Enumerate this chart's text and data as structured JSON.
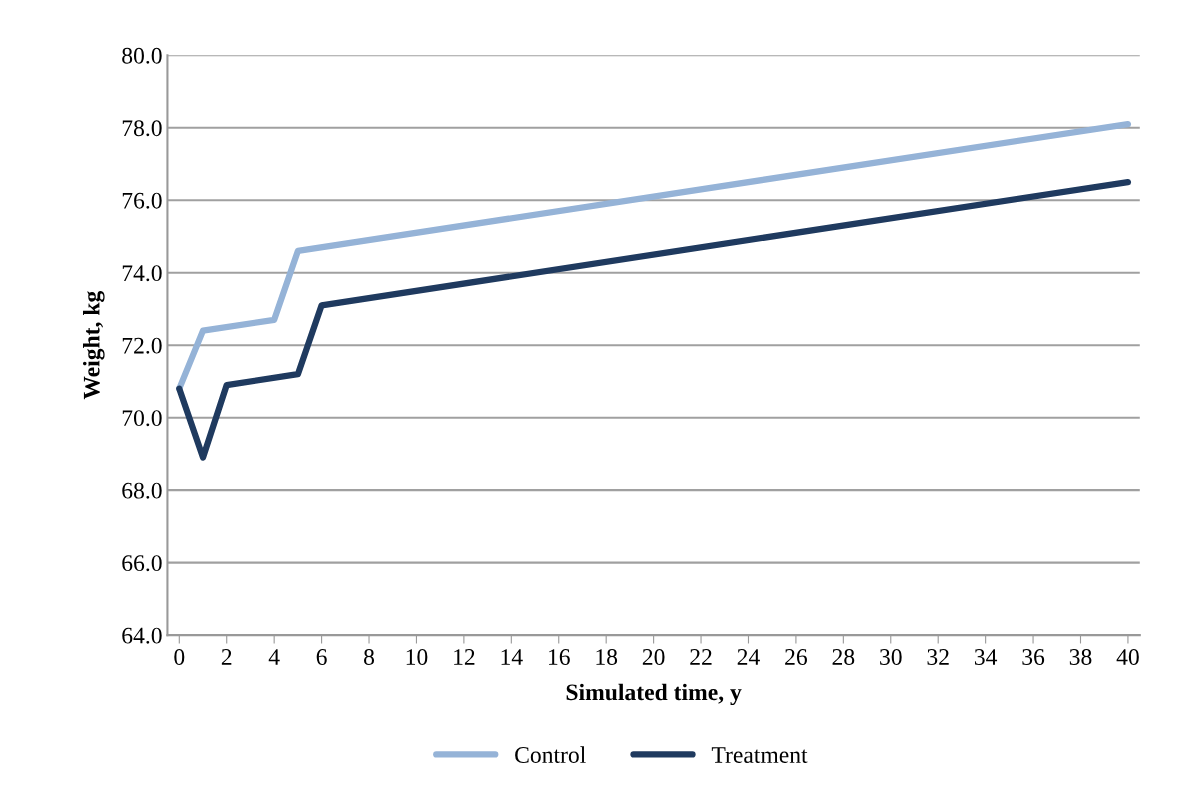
{
  "chart_data": {
    "type": "line",
    "xlabel": "Simulated time, y",
    "ylabel": "Weight, kg",
    "xlim": [
      -0.5,
      40.5
    ],
    "xticks": [
      0,
      2,
      4,
      6,
      8,
      10,
      12,
      14,
      16,
      18,
      20,
      22,
      24,
      26,
      28,
      30,
      32,
      34,
      36,
      38,
      40
    ],
    "ylim": [
      64,
      80
    ],
    "yticks": [
      {
        "value": 64,
        "label": "64.0"
      },
      {
        "value": 66,
        "label": "66.0"
      },
      {
        "value": 68,
        "label": "68.0"
      },
      {
        "value": 70,
        "label": "70.0"
      },
      {
        "value": 72,
        "label": "72.0"
      },
      {
        "value": 74,
        "label": "74.0"
      },
      {
        "value": 76,
        "label": "76.0"
      },
      {
        "value": 78,
        "label": "78.0"
      },
      {
        "value": 80,
        "label": "80.0"
      }
    ],
    "grid": "y",
    "legend": "bottom",
    "marker": "none",
    "line_style": "solid",
    "series": [
      {
        "name": "Control",
        "color": "#95b3d7",
        "x": [
          0,
          1,
          4,
          5,
          40
        ],
        "values": [
          70.8,
          72.4,
          72.7,
          74.6,
          78.1
        ]
      },
      {
        "name": "Treatment",
        "color": "#1f3a5f",
        "x": [
          0,
          1,
          2,
          5,
          6,
          40
        ],
        "values": [
          70.8,
          68.9,
          70.9,
          71.2,
          73.1,
          76.5
        ]
      }
    ]
  }
}
